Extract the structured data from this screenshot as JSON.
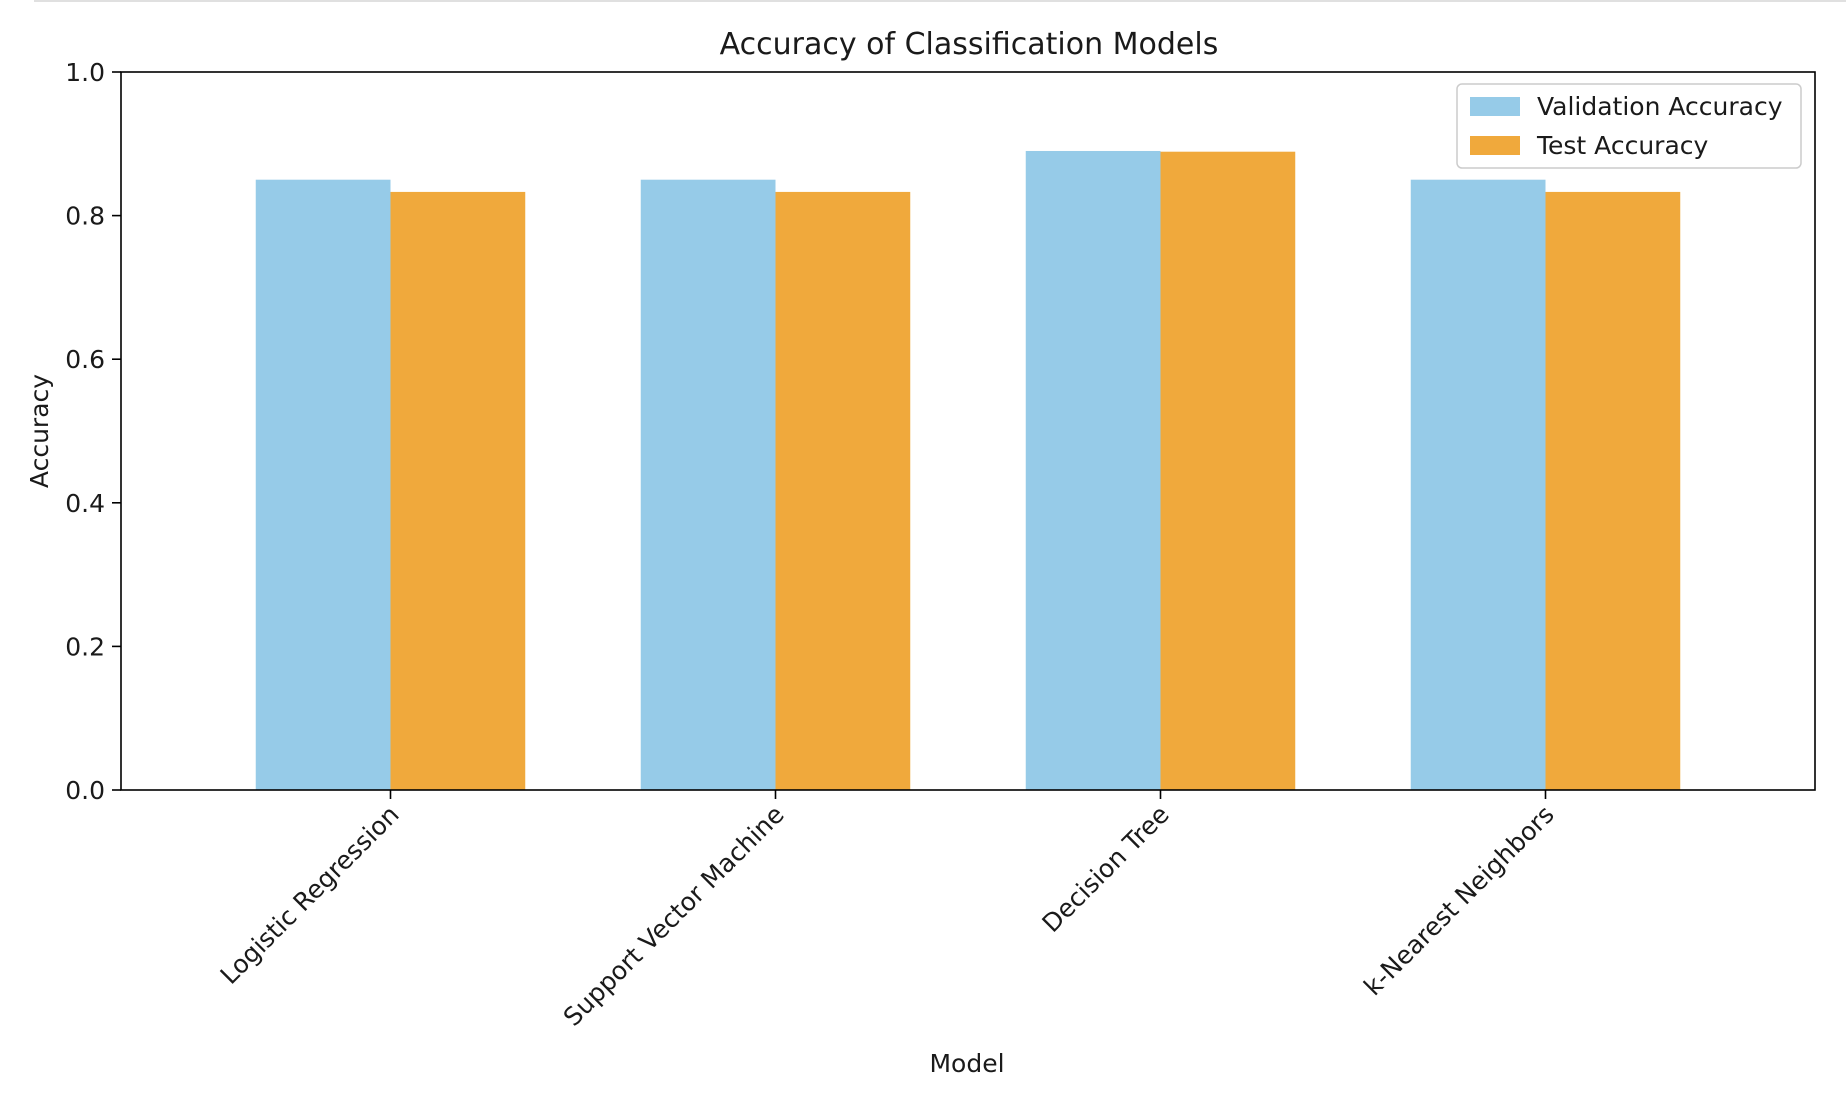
{
  "chart_data": {
    "type": "bar",
    "title": "Accuracy of Classification Models",
    "xlabel": "Model",
    "ylabel": "Accuracy",
    "ylim": [
      0,
      1.0
    ],
    "yticks": [
      "0.0",
      "0.2",
      "0.4",
      "0.6",
      "0.8",
      "1.0"
    ],
    "categories": [
      "Logistic Regression",
      "Support Vector Machine",
      "Decision Tree",
      "k-Nearest Neighbors"
    ],
    "series": [
      {
        "name": "Validation Accuracy",
        "color": "#96cbe8",
        "values": [
          0.85,
          0.85,
          0.89,
          0.85
        ]
      },
      {
        "name": "Test Accuracy",
        "color": "#f0a93c",
        "values": [
          0.833,
          0.833,
          0.889,
          0.833
        ]
      }
    ],
    "legend_position": "top-right",
    "grid": false
  }
}
